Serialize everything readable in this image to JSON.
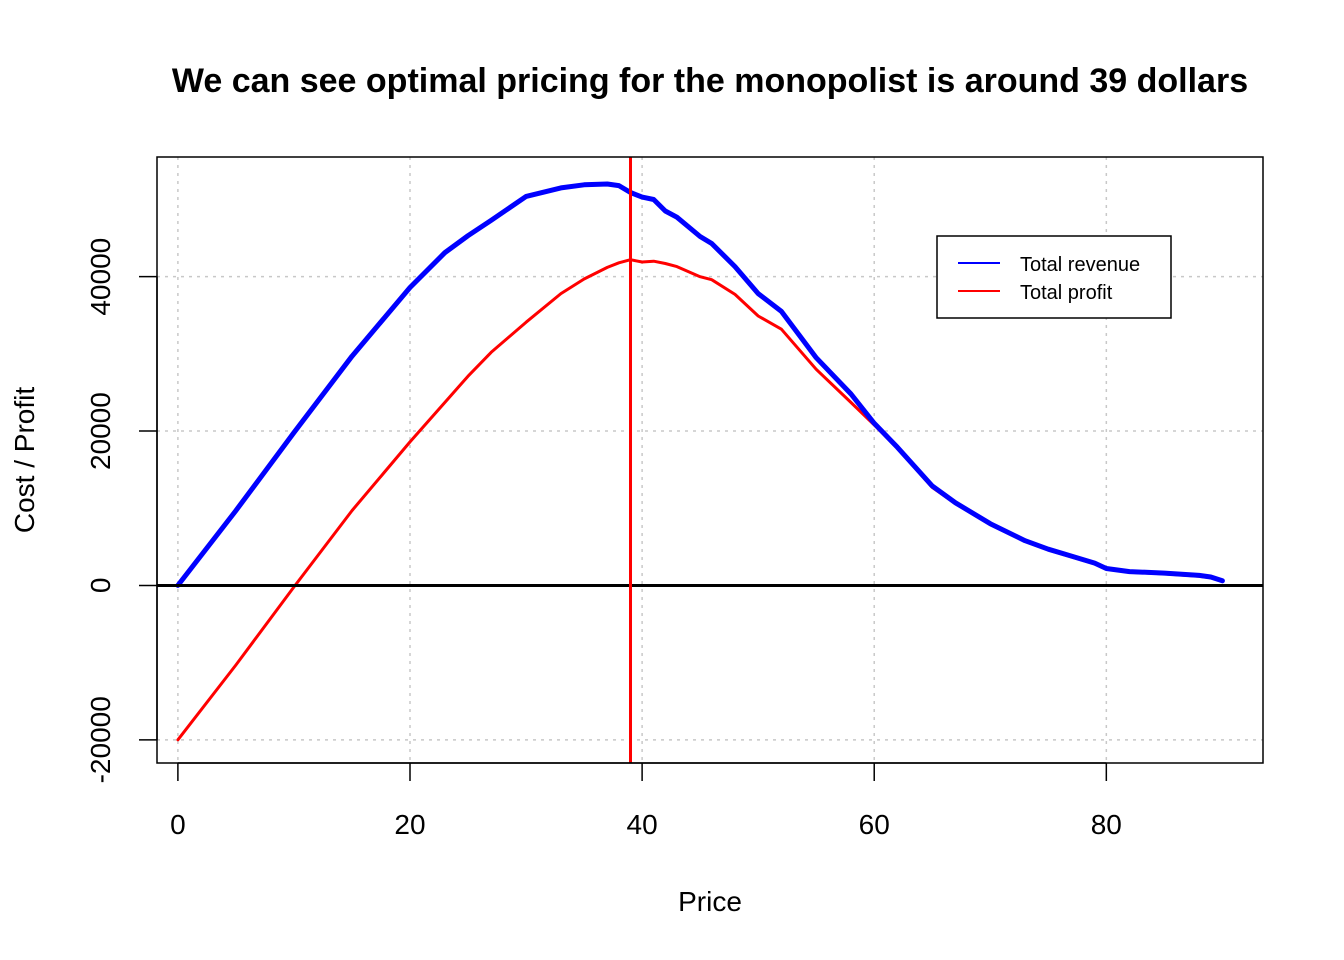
{
  "chart_data": {
    "type": "line",
    "title": "We can see optimal pricing for the monopolist is around 39 dollars",
    "xlabel": "Price",
    "ylabel": "Cost / Profit",
    "xlim": [
      -1.8,
      93.5
    ],
    "ylim": [
      -23000,
      55500
    ],
    "x_ticks": [
      0,
      20,
      40,
      60,
      80
    ],
    "y_ticks": [
      -20000,
      0,
      20000,
      40000
    ],
    "x_tick_labels": [
      "0",
      "20",
      "40",
      "60",
      "80"
    ],
    "y_tick_labels": [
      "-20000",
      "0",
      "20000",
      "40000"
    ],
    "grid": true,
    "legend_position": "top-right",
    "legend": [
      {
        "label": "Total revenue",
        "color": "#0000ff"
      },
      {
        "label": "Total profit",
        "color": "#ff0000"
      }
    ],
    "hline": {
      "y": 0,
      "color": "#000000"
    },
    "vline": {
      "x": 39,
      "color": "#ff0000"
    },
    "x": [
      0,
      5,
      10,
      15,
      20,
      23,
      25,
      27,
      30,
      33,
      35,
      37,
      38,
      39,
      40,
      41,
      42,
      43,
      45,
      46,
      48,
      50,
      52,
      55,
      58,
      60,
      62,
      65,
      67,
      70,
      73,
      75,
      77,
      79,
      80,
      82,
      85,
      88,
      89,
      90
    ],
    "series": [
      {
        "name": "Total revenue",
        "color": "#0000ff",
        "values": [
          0,
          9700,
          19800,
          29700,
          38600,
          43100,
          45300,
          47300,
          50400,
          51500,
          51900,
          52000,
          51800,
          50900,
          50300,
          50000,
          48500,
          47700,
          45200,
          44300,
          41300,
          37800,
          35500,
          29500,
          24800,
          21000,
          17900,
          12900,
          10700,
          8000,
          5800,
          4700,
          3800,
          2900,
          2200,
          1800,
          1600,
          1300,
          1100,
          600
        ]
      },
      {
        "name": "Total profit",
        "color": "#ff0000",
        "values": [
          -20000,
          -10300,
          -200,
          9700,
          18600,
          23700,
          27100,
          30200,
          34100,
          37800,
          39700,
          41200,
          41800,
          42200,
          41900,
          42000,
          41700,
          41300,
          40000,
          39600,
          37700,
          34900,
          33200,
          28000,
          23700,
          20800,
          17800,
          12700,
          10600,
          7900,
          5700,
          4600,
          3700,
          2800,
          2100,
          1700,
          1500,
          1200,
          1000,
          500
        ]
      }
    ]
  }
}
